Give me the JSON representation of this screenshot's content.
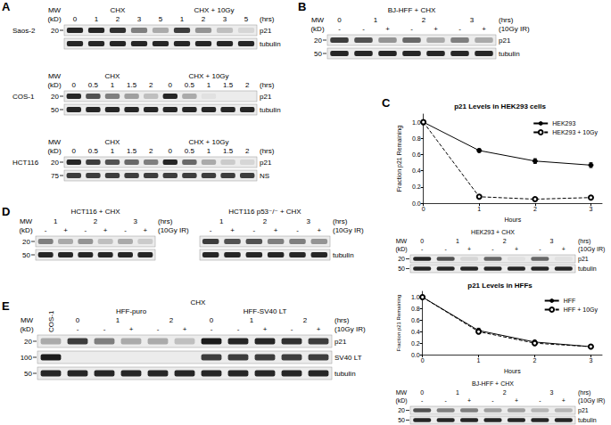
{
  "mw_label": [
    "MW",
    "(kD)"
  ],
  "panels": {
    "A": {
      "label": "A",
      "blots": [
        {
          "side_name": "Saos-2",
          "header": [
            {
              "label": "CHX",
              "children": [
                "0",
                "1",
                "2",
                "3",
                "5"
              ]
            },
            {
              "label": "CHX + 10Gy",
              "children": [
                "1",
                "2",
                "3",
                "5"
              ]
            }
          ],
          "header_row_labels": [
            null,
            "(hrs)"
          ],
          "rows": [
            {
              "protein": "p21",
              "mw": 20,
              "band_intensity": [
                0.9,
                0.9,
                0.85,
                0.5,
                0.3,
                0.8,
                0.4,
                0.2,
                0.1
              ]
            },
            {
              "protein": "tubulin",
              "band_intensity": [
                0.9,
                0.9,
                0.9,
                0.9,
                0.9,
                0.9,
                0.9,
                0.9,
                0.9
              ]
            }
          ]
        },
        {
          "side_name": "COS-1",
          "header": [
            {
              "label": "CHX",
              "children": [
                "0",
                "0.5",
                "1",
                "1.5",
                "2"
              ]
            },
            {
              "label": "CHX + 10Gy",
              "children": [
                "0",
                "0.5",
                "1",
                "1.5",
                "2"
              ]
            }
          ],
          "header_row_labels": [
            null,
            "(hrs)"
          ],
          "rows": [
            {
              "protein": "p21",
              "mw": 20,
              "band_intensity": [
                0.9,
                0.7,
                0.5,
                0.35,
                0.2,
                0.9,
                0.3,
                0.05,
                0,
                0
              ]
            },
            {
              "protein": "tubulin",
              "mw": 50,
              "band_intensity": [
                0.9,
                0.9,
                0.9,
                0.9,
                0.9,
                0.9,
                0.9,
                0.9,
                0.9,
                0.9
              ]
            }
          ]
        },
        {
          "side_name": "HCT116",
          "header": [
            {
              "label": "CHX",
              "children": [
                "0",
                "0.5",
                "1",
                "1.5",
                "2"
              ]
            },
            {
              "label": "CHX + 10Gy",
              "children": [
                "0",
                "0.5",
                "1",
                "1.5",
                "2"
              ]
            }
          ],
          "header_row_labels": [
            null,
            "(hrs)"
          ],
          "rows": [
            {
              "protein": "p21",
              "mw": 20,
              "band_intensity": [
                0.9,
                0.8,
                0.7,
                0.6,
                0.5,
                0.9,
                0.6,
                0.3,
                0.15,
                0.1
              ]
            },
            {
              "protein": "NS",
              "mw": 75,
              "band_intensity": [
                0.8,
                0.8,
                0.8,
                0.8,
                0.8,
                0.8,
                0.8,
                0.8,
                0.8,
                0.8
              ]
            }
          ]
        }
      ]
    },
    "B": {
      "label": "B",
      "blots": [
        {
          "title": "BJ-HFF + CHX",
          "header": [
            {
              "label": "0",
              "children": [
                "-"
              ]
            },
            {
              "label": "1",
              "children": [
                "-",
                "+"
              ]
            },
            {
              "label": "2",
              "children": [
                "-",
                "+"
              ]
            },
            {
              "label": "3",
              "children": [
                "-",
                "+"
              ]
            }
          ],
          "header_row_labels": [
            "(hrs)",
            "(10Gy IR)"
          ],
          "rows": [
            {
              "protein": "p21",
              "mw": 20,
              "band_intensity": [
                0.8,
                0.7,
                0.4,
                0.6,
                0.3,
                0.5,
                0.3
              ]
            },
            {
              "protein": "tubulin",
              "mw": 50,
              "band_intensity": [
                0.9,
                0.9,
                0.9,
                0.9,
                0.9,
                0.9,
                0.9
              ]
            }
          ]
        }
      ]
    },
    "C": {
      "label": "C",
      "blots": [
        {
          "title": "HEK293 + CHX",
          "header": [
            {
              "label": "0",
              "children": [
                "-"
              ]
            },
            {
              "label": "1",
              "children": [
                "-",
                "+"
              ]
            },
            {
              "label": "2",
              "children": [
                "-",
                "+"
              ]
            },
            {
              "label": "3",
              "children": [
                "-",
                "+"
              ]
            }
          ],
          "header_row_labels": [
            "(hrs)",
            "(10Gy IR)"
          ],
          "rows": [
            {
              "protein": "p21",
              "mw": 20,
              "band_intensity": [
                0.9,
                0.7,
                0.1,
                0.6,
                0.05,
                0.6,
                0.05
              ]
            },
            {
              "protein": "tubulin",
              "mw": 50,
              "band_intensity": [
                0.9,
                0.9,
                0.9,
                0.9,
                0.9,
                0.9,
                0.9
              ]
            }
          ]
        },
        {
          "title": "BJ-HFF + CHX",
          "header": [
            {
              "label": "0",
              "children": [
                "-"
              ]
            },
            {
              "label": "1",
              "children": [
                "-",
                "+"
              ]
            },
            {
              "label": "2",
              "children": [
                "-",
                "+"
              ]
            },
            {
              "label": "3",
              "children": [
                "-",
                "+"
              ]
            }
          ],
          "header_row_labels": [
            "(hrs)",
            "(10Gy IR)"
          ],
          "rows": [
            {
              "protein": "p21",
              "mw": 20,
              "band_intensity": [
                0.7,
                0.5,
                0.5,
                0.35,
                0.35,
                0.25,
                0.25
              ]
            },
            {
              "protein": "tubulin",
              "mw": 50,
              "band_intensity": [
                0.9,
                0.9,
                0.9,
                0.9,
                0.9,
                0.9,
                0.9
              ]
            }
          ]
        }
      ]
    },
    "D": {
      "label": "D",
      "blots": [
        {
          "title": "HCT116 + CHX",
          "header": [
            {
              "label": "1",
              "children": [
                "-",
                "+"
              ]
            },
            {
              "label": "2",
              "children": [
                "-",
                "+"
              ]
            },
            {
              "label": "3",
              "children": [
                "-",
                "+"
              ]
            }
          ],
          "header_row_labels": [
            "(hrs)",
            "(10Gy IR)"
          ],
          "rows": [
            {
              "mw": 20,
              "band_intensity": [
                0.5,
                0.3,
                0.4,
                0.2,
                0.3,
                0.15
              ]
            },
            {
              "mw": 50,
              "band_intensity": [
                0.9,
                0.9,
                0.9,
                0.9,
                0.9,
                0.9
              ]
            }
          ]
        },
        {
          "title": "HCT116 p53⁻/⁻ + CHX",
          "header": [
            {
              "label": "1",
              "children": [
                "-",
                "+"
              ]
            },
            {
              "label": "2",
              "children": [
                "-",
                "+"
              ]
            },
            {
              "label": "3",
              "children": [
                "-",
                "+"
              ]
            }
          ],
          "header_row_labels": [
            "(hrs)",
            "(10Gy IR)"
          ],
          "rows": [
            {
              "band_intensity": [
                0.8,
                0.7,
                0.7,
                0.5,
                0.5,
                0.4
              ]
            },
            {
              "protein": "tubulin",
              "band_intensity": [
                0.9,
                0.9,
                0.9,
                0.9,
                0.9,
                0.9
              ]
            }
          ]
        }
      ]
    },
    "E": {
      "label": "E",
      "blots": [
        {
          "header": [
            "COS-1",
            {
              "label": "CHX",
              "children": [
                {
                  "label": "HFF-puro",
                  "children": [
                    {
                      "label": "0",
                      "children": [
                        "-"
                      ]
                    },
                    {
                      "label": "1",
                      "children": [
                        "-",
                        "+"
                      ]
                    },
                    {
                      "label": "2",
                      "children": [
                        "-",
                        "+"
                      ]
                    }
                  ]
                },
                {
                  "label": "HFF-SV40 LT",
                  "children": [
                    {
                      "label": "0",
                      "children": [
                        "-"
                      ]
                    },
                    {
                      "label": "1",
                      "children": [
                        "-",
                        "+"
                      ]
                    },
                    {
                      "label": "2",
                      "children": [
                        "-",
                        "+"
                      ]
                    }
                  ]
                }
              ]
            }
          ],
          "header_row_labels": [
            null,
            null,
            "(hrs)",
            "(10Gy IR)"
          ],
          "rows": [
            {
              "protein": "p21",
              "mw": 20,
              "band_intensity": [
                0.3,
                0.8,
                0.5,
                0.3,
                0.3,
                0.2,
                0.95,
                0.9,
                0.9,
                0.85,
                0.8
              ]
            },
            {
              "protein": "SV40 LT",
              "mw": 100,
              "band_intensity": [
                0.95,
                0,
                0,
                0,
                0,
                0,
                0.8,
                0.8,
                0.8,
                0.8,
                0.8
              ]
            },
            {
              "protein": "tubulin",
              "mw": 50,
              "band_intensity": [
                0.9,
                0.9,
                0.9,
                0.9,
                0.9,
                0.9,
                0.9,
                0.9,
                0.9,
                0.9,
                0.9
              ]
            }
          ]
        }
      ]
    }
  },
  "chart_data": [
    {
      "type": "line",
      "title": "p21 Levels in HEK293 cells",
      "xlabel": "Hours",
      "ylabel": "Fraction p21 Remaining",
      "x": [
        0,
        1,
        2,
        3
      ],
      "xlim": [
        0,
        3.2
      ],
      "xticks": [
        0,
        1,
        2,
        3
      ],
      "ylim": [
        0,
        1.1
      ],
      "yticks": [
        {
          "value": 0,
          "label": "0.0"
        },
        0.2,
        0.4,
        0.6,
        0.8,
        {
          "value": 1,
          "label": "1.0"
        }
      ],
      "grid": false,
      "legend": "upper right",
      "series": [
        {
          "name": "HEK293",
          "color": "#000000",
          "marker": "circle",
          "line_style": "solid",
          "values": [
            1,
            0.65,
            0.52,
            0.47
          ],
          "errors": [
            0,
            0.02,
            0.03,
            0.03
          ]
        },
        {
          "name": "HEK293 + 10Gy",
          "color": "#000000",
          "marker": "open_circle",
          "line_style": "dashed",
          "values": [
            1,
            0.08,
            0.05,
            0.07
          ],
          "errors": [
            0,
            0.01,
            0.01,
            0.01
          ]
        }
      ]
    },
    {
      "type": "line",
      "title": "p21 Levels in HFFs",
      "xlabel": "Hours",
      "ylabel": "Fraction p21 Remaining",
      "x": [
        0,
        1,
        2,
        3
      ],
      "xlim": [
        0,
        3.2
      ],
      "xticks": [
        0,
        1,
        2,
        3
      ],
      "ylim": [
        0,
        1.1
      ],
      "yticks": [
        {
          "value": 0,
          "label": "0.0"
        },
        0.2,
        0.4,
        0.6,
        0.8,
        {
          "value": 1,
          "label": "1.0"
        }
      ],
      "grid": false,
      "legend": "upper right",
      "series": [
        {
          "name": "HFF",
          "color": "#000000",
          "marker": "circle",
          "line_style": "solid",
          "values": [
            1,
            0.42,
            0.22,
            0.14
          ],
          "errors": [
            0,
            0.04,
            0.03,
            0.01
          ]
        },
        {
          "name": "HFF + 10Gy",
          "color": "#000000",
          "marker": "open_circle",
          "line_style": "dashed",
          "values": [
            1,
            0.4,
            0.2,
            0.14
          ],
          "errors": [
            0,
            0.03,
            0.03,
            0.01
          ]
        }
      ]
    }
  ]
}
